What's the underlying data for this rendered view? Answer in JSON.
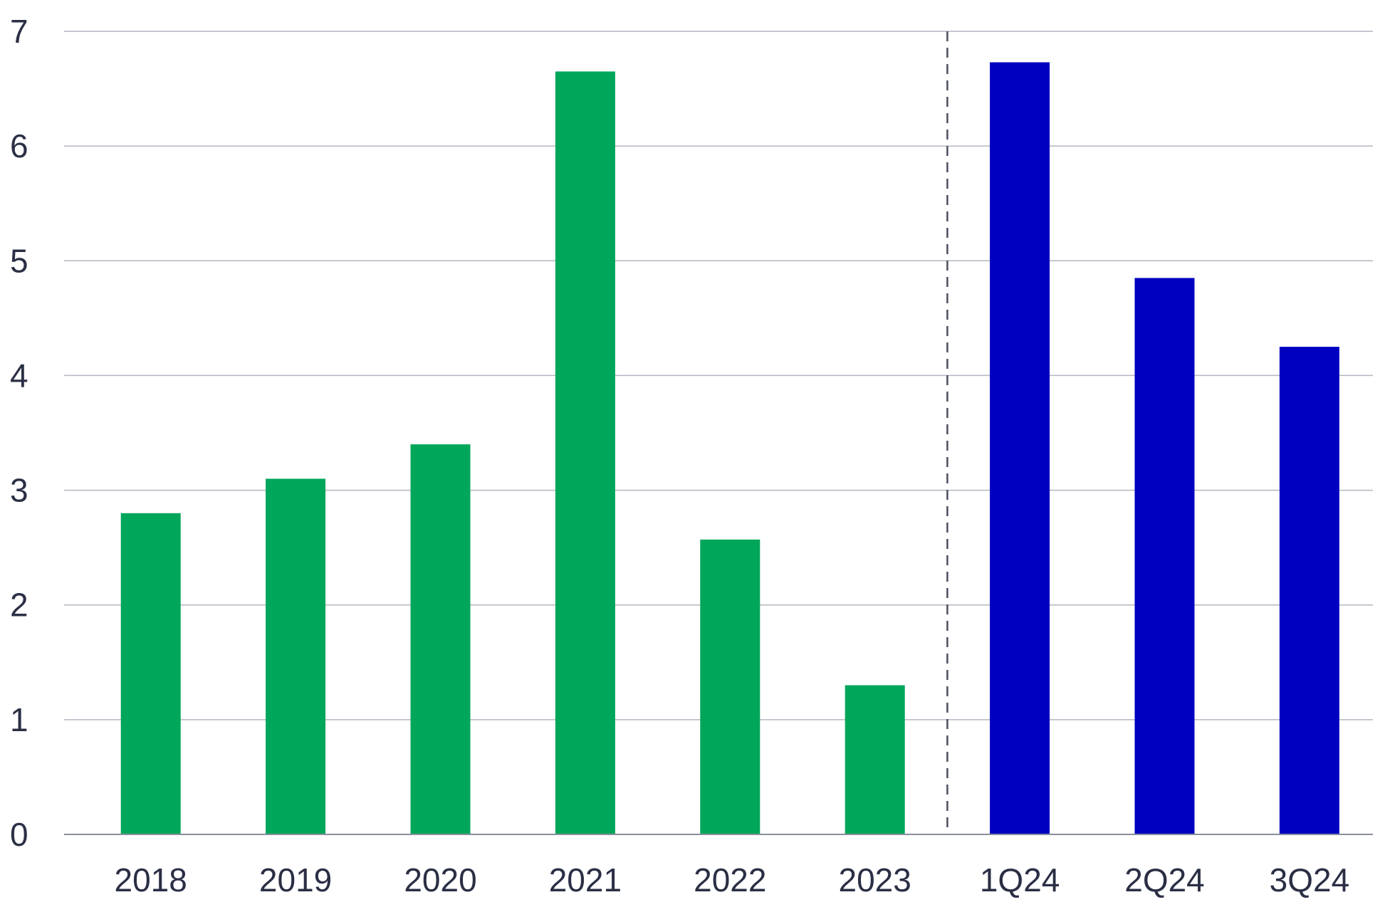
{
  "chart_data": {
    "type": "bar",
    "title": "",
    "xlabel": "",
    "ylabel": "",
    "categories": [
      "2018",
      "2019",
      "2020",
      "2021",
      "2022",
      "2023",
      "1Q24",
      "2Q24",
      "3Q24"
    ],
    "values": [
      2.8,
      3.1,
      3.4,
      6.65,
      2.57,
      1.3,
      6.73,
      4.85,
      4.25
    ],
    "ylim": [
      0,
      7
    ],
    "yticks": [
      "0",
      "1",
      "2",
      "3",
      "4",
      "5",
      "6",
      "7"
    ],
    "grid": true,
    "separator_after_category": "2023",
    "separator_style": "dashed",
    "colors": {
      "annual": "#00a65a",
      "quarterly": "#0000c0",
      "grid": "#b3b6c0",
      "axis": "#8a8e9c",
      "separator": "#4a4e5e",
      "text": "#2b2f45"
    },
    "bar_groups": [
      "annual",
      "annual",
      "annual",
      "annual",
      "annual",
      "annual",
      "quarterly",
      "quarterly",
      "quarterly"
    ]
  }
}
